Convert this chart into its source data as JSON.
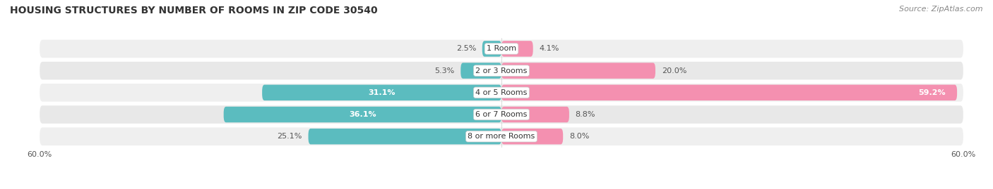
{
  "title": "HOUSING STRUCTURES BY NUMBER OF ROOMS IN ZIP CODE 30540",
  "source": "Source: ZipAtlas.com",
  "categories": [
    "1 Room",
    "2 or 3 Rooms",
    "4 or 5 Rooms",
    "6 or 7 Rooms",
    "8 or more Rooms"
  ],
  "owner_values": [
    2.5,
    5.3,
    31.1,
    36.1,
    25.1
  ],
  "renter_values": [
    4.1,
    20.0,
    59.2,
    8.8,
    8.0
  ],
  "owner_color": "#5bbcbf",
  "renter_color": "#f490b0",
  "renter_color_bright": "#f03e8a",
  "row_bg_color": "#efefef",
  "row_alt_bg_color": "#e8e8e8",
  "xlim": 60.0,
  "title_fontsize": 10,
  "source_fontsize": 8,
  "label_fontsize": 8,
  "category_fontsize": 8,
  "bar_height": 0.72,
  "background_color": "#ffffff",
  "owner_label_inside_threshold": 30.0,
  "renter_label_inside_threshold": 30.0
}
